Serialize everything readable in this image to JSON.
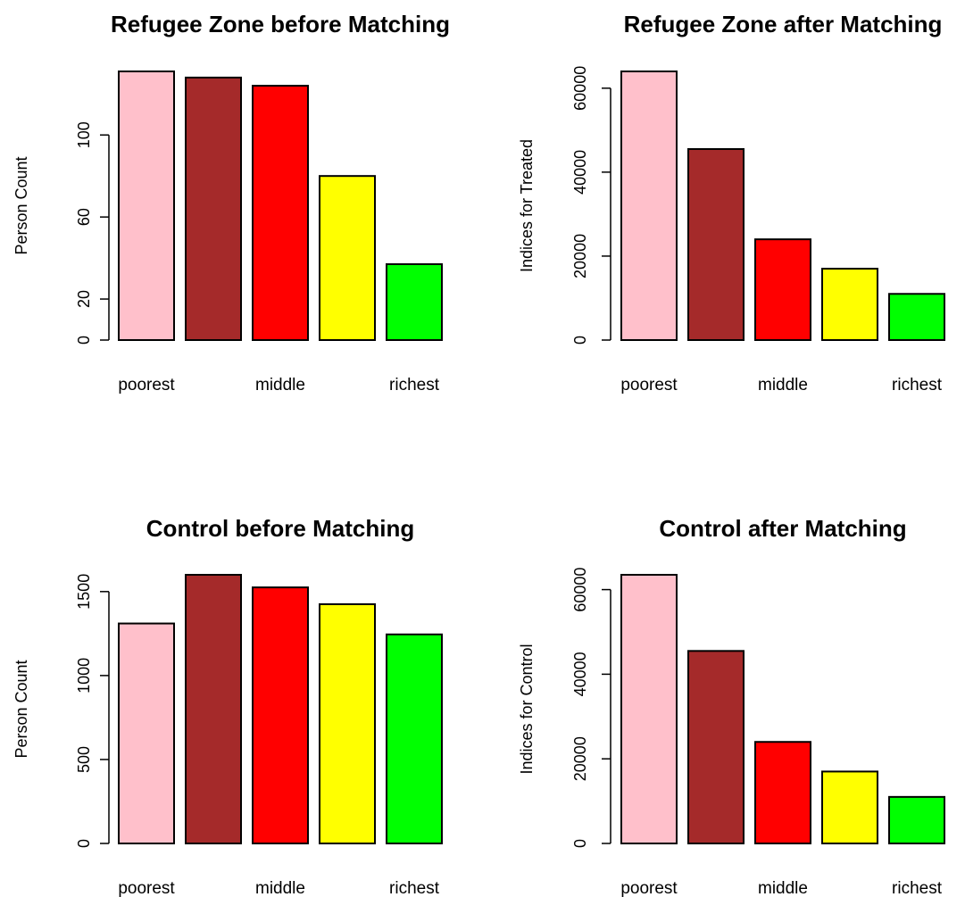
{
  "chart_data": [
    {
      "type": "bar",
      "title": "Refugee Zone before Matching",
      "xlabel": "",
      "ylabel": "Person Count",
      "categories": [
        "poorest",
        "",
        "middle",
        "",
        "richest"
      ],
      "values": [
        131,
        128,
        124,
        80,
        37
      ],
      "colors": [
        "#ffc0cb",
        "#a52a2a",
        "#ff0000",
        "#ffff00",
        "#00ff00"
      ],
      "yticks": [
        0,
        20,
        60,
        100
      ],
      "ylim": [
        0,
        131
      ],
      "grid": false
    },
    {
      "type": "bar",
      "title": "Refugee Zone after Matching",
      "xlabel": "",
      "ylabel": "Indices for Treated",
      "categories": [
        "poorest",
        "",
        "middle",
        "",
        "richest"
      ],
      "values": [
        64000,
        45500,
        24000,
        17000,
        11000
      ],
      "colors": [
        "#ffc0cb",
        "#a52a2a",
        "#ff0000",
        "#ffff00",
        "#00ff00"
      ],
      "yticks": [
        0,
        20000,
        40000,
        60000
      ],
      "ylim": [
        0,
        64000
      ],
      "grid": false
    },
    {
      "type": "bar",
      "title": "Control before Matching",
      "xlabel": "",
      "ylabel": "Person Count",
      "categories": [
        "poorest",
        "",
        "middle",
        "",
        "richest"
      ],
      "values": [
        1310,
        1600,
        1525,
        1425,
        1245
      ],
      "colors": [
        "#ffc0cb",
        "#a52a2a",
        "#ff0000",
        "#ffff00",
        "#00ff00"
      ],
      "yticks": [
        0,
        500,
        1000,
        1500
      ],
      "ylim": [
        0,
        1600
      ],
      "grid": false
    },
    {
      "type": "bar",
      "title": "Control after Matching",
      "xlabel": "",
      "ylabel": "Indices for Control",
      "categories": [
        "poorest",
        "",
        "middle",
        "",
        "richest"
      ],
      "values": [
        63500,
        45500,
        24000,
        17000,
        11000
      ],
      "colors": [
        "#ffc0cb",
        "#a52a2a",
        "#ff0000",
        "#ffff00",
        "#00ff00"
      ],
      "yticks": [
        0,
        20000,
        40000,
        60000
      ],
      "ylim": [
        0,
        63500
      ],
      "grid": false
    }
  ]
}
